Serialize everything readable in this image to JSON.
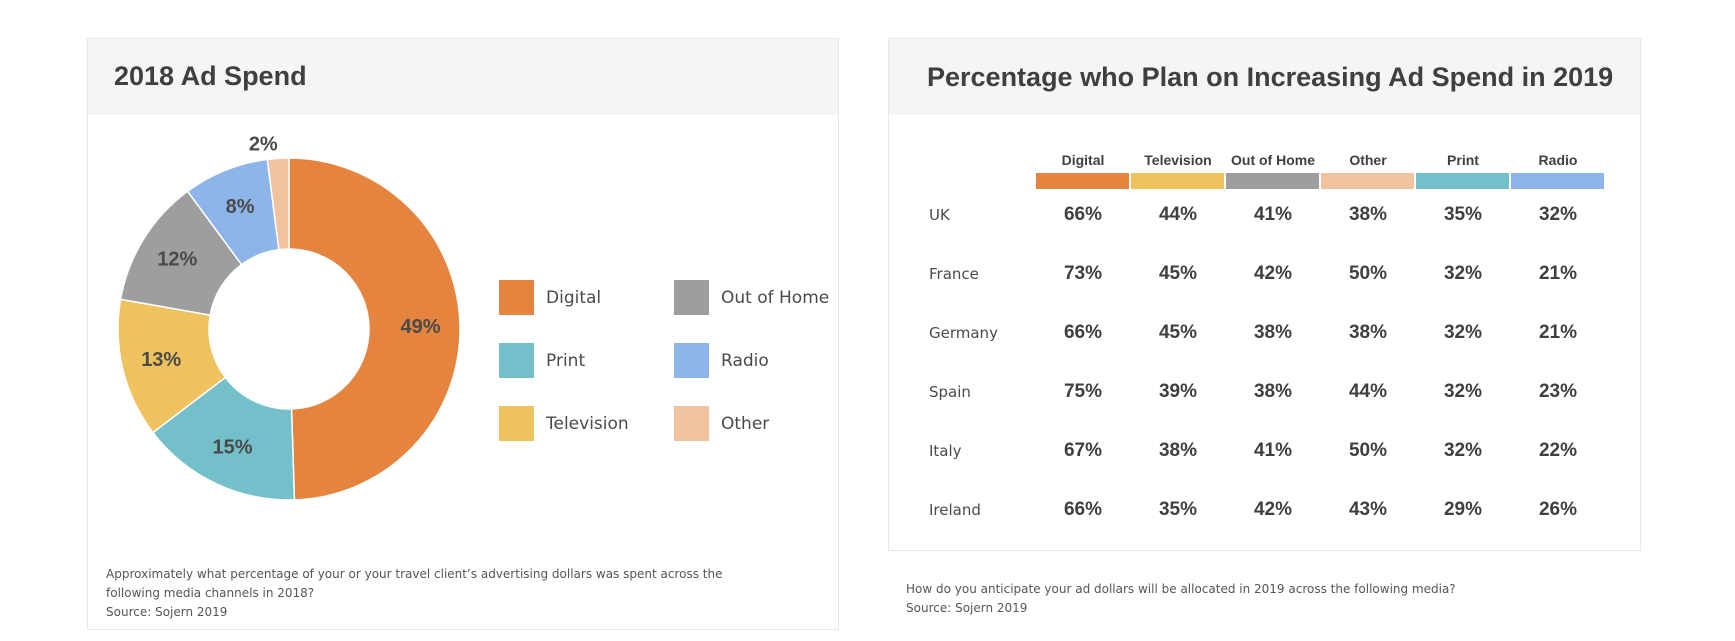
{
  "left_panel": {
    "title": "2018 Ad Spend",
    "note_lines": [
      "Approximately what percentage of your or your travel client’s advertising dollars was spent across the",
      "following media channels in 2018?",
      "Source: Sojern 2019"
    ]
  },
  "right_panel": {
    "title": "Percentage who Plan on Increasing Ad Spend in 2019",
    "note_lines": [
      "How do you anticipate your ad dollars will be allocated in 2019 across the following media?",
      "Source: Sojern 2019"
    ]
  },
  "chart_data": [
    {
      "type": "pie",
      "subtype": "donut",
      "title": "2018 Ad Spend",
      "slices": [
        {
          "name": "Digital",
          "value": 49,
          "label": "49%",
          "color": "#E4843E"
        },
        {
          "name": "Print",
          "value": 15,
          "label": "15%",
          "color": "#73BFCA"
        },
        {
          "name": "Television",
          "value": 13,
          "label": "13%",
          "color": "#EEC35F"
        },
        {
          "name": "Out of Home",
          "value": 12,
          "label": "12%",
          "color": "#9E9E9E"
        },
        {
          "name": "Radio",
          "value": 8,
          "label": "8%",
          "color": "#8DB5EA"
        },
        {
          "name": "Other",
          "value": 2,
          "label": "2%",
          "color": "#F0C29E"
        }
      ],
      "legend": [
        {
          "name": "Digital",
          "color": "#E4843E"
        },
        {
          "name": "Out of Home",
          "color": "#9E9E9E"
        },
        {
          "name": "Print",
          "color": "#73BFCA"
        },
        {
          "name": "Radio",
          "color": "#8DB5EA"
        },
        {
          "name": "Television",
          "color": "#EEC35F"
        },
        {
          "name": "Other",
          "color": "#F0C29E"
        }
      ],
      "legend_placement": "right"
    },
    {
      "type": "table",
      "title": "Percentage who Plan on Increasing Ad Spend in 2019",
      "columns": [
        {
          "name": "Digital",
          "color": "#E4843E"
        },
        {
          "name": "Television",
          "color": "#EEC35F"
        },
        {
          "name": "Out of Home",
          "color": "#9E9E9E"
        },
        {
          "name": "Other",
          "color": "#F0C29E"
        },
        {
          "name": "Print",
          "color": "#73BFCA"
        },
        {
          "name": "Radio",
          "color": "#8DB5EA"
        }
      ],
      "rows": [
        {
          "label": "UK",
          "values": [
            "66%",
            "44%",
            "41%",
            "38%",
            "35%",
            "32%"
          ]
        },
        {
          "label": "France",
          "values": [
            "73%",
            "45%",
            "42%",
            "50%",
            "32%",
            "21%"
          ]
        },
        {
          "label": "Germany",
          "values": [
            "66%",
            "45%",
            "38%",
            "38%",
            "32%",
            "21%"
          ]
        },
        {
          "label": "Spain",
          "values": [
            "75%",
            "39%",
            "38%",
            "44%",
            "32%",
            "23%"
          ]
        },
        {
          "label": "Italy",
          "values": [
            "67%",
            "38%",
            "41%",
            "50%",
            "32%",
            "22%"
          ]
        },
        {
          "label": "Ireland",
          "values": [
            "66%",
            "35%",
            "42%",
            "43%",
            "29%",
            "26%"
          ]
        }
      ]
    }
  ]
}
